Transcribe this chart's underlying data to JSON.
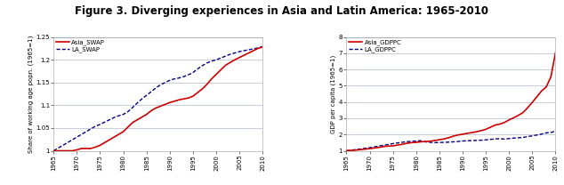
{
  "title": "Figure 3. Diverging experiences in Asia and Latin America: 1965-2010",
  "title_fontsize": 8.5,
  "years": [
    1965,
    1966,
    1967,
    1968,
    1969,
    1970,
    1971,
    1972,
    1973,
    1974,
    1975,
    1976,
    1977,
    1978,
    1979,
    1980,
    1981,
    1982,
    1983,
    1984,
    1985,
    1986,
    1987,
    1988,
    1989,
    1990,
    1991,
    1992,
    1993,
    1994,
    1995,
    1996,
    1997,
    1998,
    1999,
    2000,
    2001,
    2002,
    2003,
    2004,
    2005,
    2006,
    2007,
    2008,
    2009,
    2010
  ],
  "asia_swap": [
    1.0,
    1.0,
    1.0,
    1.0,
    1.0,
    1.002,
    1.005,
    1.005,
    1.005,
    1.008,
    1.012,
    1.018,
    1.024,
    1.03,
    1.036,
    1.042,
    1.052,
    1.062,
    1.068,
    1.074,
    1.08,
    1.088,
    1.094,
    1.098,
    1.102,
    1.106,
    1.109,
    1.112,
    1.114,
    1.116,
    1.12,
    1.128,
    1.136,
    1.146,
    1.158,
    1.168,
    1.178,
    1.188,
    1.194,
    1.2,
    1.205,
    1.21,
    1.215,
    1.22,
    1.225,
    1.228
  ],
  "la_swap": [
    1.0,
    1.006,
    1.012,
    1.018,
    1.024,
    1.03,
    1.036,
    1.042,
    1.048,
    1.054,
    1.058,
    1.063,
    1.068,
    1.073,
    1.077,
    1.08,
    1.086,
    1.095,
    1.105,
    1.114,
    1.122,
    1.13,
    1.138,
    1.145,
    1.15,
    1.155,
    1.158,
    1.16,
    1.163,
    1.167,
    1.172,
    1.18,
    1.187,
    1.193,
    1.197,
    1.2,
    1.204,
    1.208,
    1.212,
    1.215,
    1.218,
    1.22,
    1.222,
    1.224,
    1.226,
    1.229
  ],
  "asia_gdppc": [
    1.0,
    1.02,
    1.04,
    1.07,
    1.1,
    1.13,
    1.17,
    1.21,
    1.26,
    1.29,
    1.3,
    1.35,
    1.4,
    1.46,
    1.5,
    1.52,
    1.55,
    1.57,
    1.59,
    1.63,
    1.68,
    1.73,
    1.8,
    1.9,
    1.97,
    2.02,
    2.07,
    2.12,
    2.17,
    2.24,
    2.32,
    2.45,
    2.58,
    2.64,
    2.74,
    2.9,
    3.03,
    3.18,
    3.35,
    3.65,
    3.98,
    4.33,
    4.68,
    4.93,
    5.55,
    7.05
  ],
  "la_gdppc": [
    1.0,
    1.04,
    1.07,
    1.11,
    1.15,
    1.19,
    1.24,
    1.29,
    1.34,
    1.39,
    1.44,
    1.48,
    1.52,
    1.56,
    1.58,
    1.6,
    1.62,
    1.55,
    1.52,
    1.5,
    1.51,
    1.52,
    1.53,
    1.55,
    1.57,
    1.6,
    1.62,
    1.63,
    1.64,
    1.65,
    1.67,
    1.7,
    1.73,
    1.74,
    1.72,
    1.75,
    1.78,
    1.8,
    1.82,
    1.87,
    1.92,
    1.97,
    2.03,
    2.1,
    2.13,
    2.2
  ],
  "swap_ylabel": "Share of working age popn. (1965=1)",
  "gdp_ylabel": "GDP per capita (1965=1)",
  "swap_ylim": [
    1.0,
    1.25
  ],
  "gdp_ylim": [
    1.0,
    8.0
  ],
  "swap_yticks": [
    1.0,
    1.05,
    1.1,
    1.15,
    1.2,
    1.25
  ],
  "gdp_yticks": [
    1,
    2,
    3,
    4,
    5,
    6,
    7,
    8
  ],
  "xticks": [
    1965,
    1970,
    1975,
    1980,
    1985,
    1990,
    1995,
    2000,
    2005,
    2010
  ],
  "color_asia": "#cc0000",
  "color_la": "#000080",
  "bg_color": "#ffffff",
  "grid_color": "#b0b8cc",
  "label_asia_swap": "Asia_SWAP",
  "label_la_swap": "LA_SWAP",
  "label_asia_gdp": "Asia_GDPPC",
  "label_la_gdp": "LA_GDPPC"
}
